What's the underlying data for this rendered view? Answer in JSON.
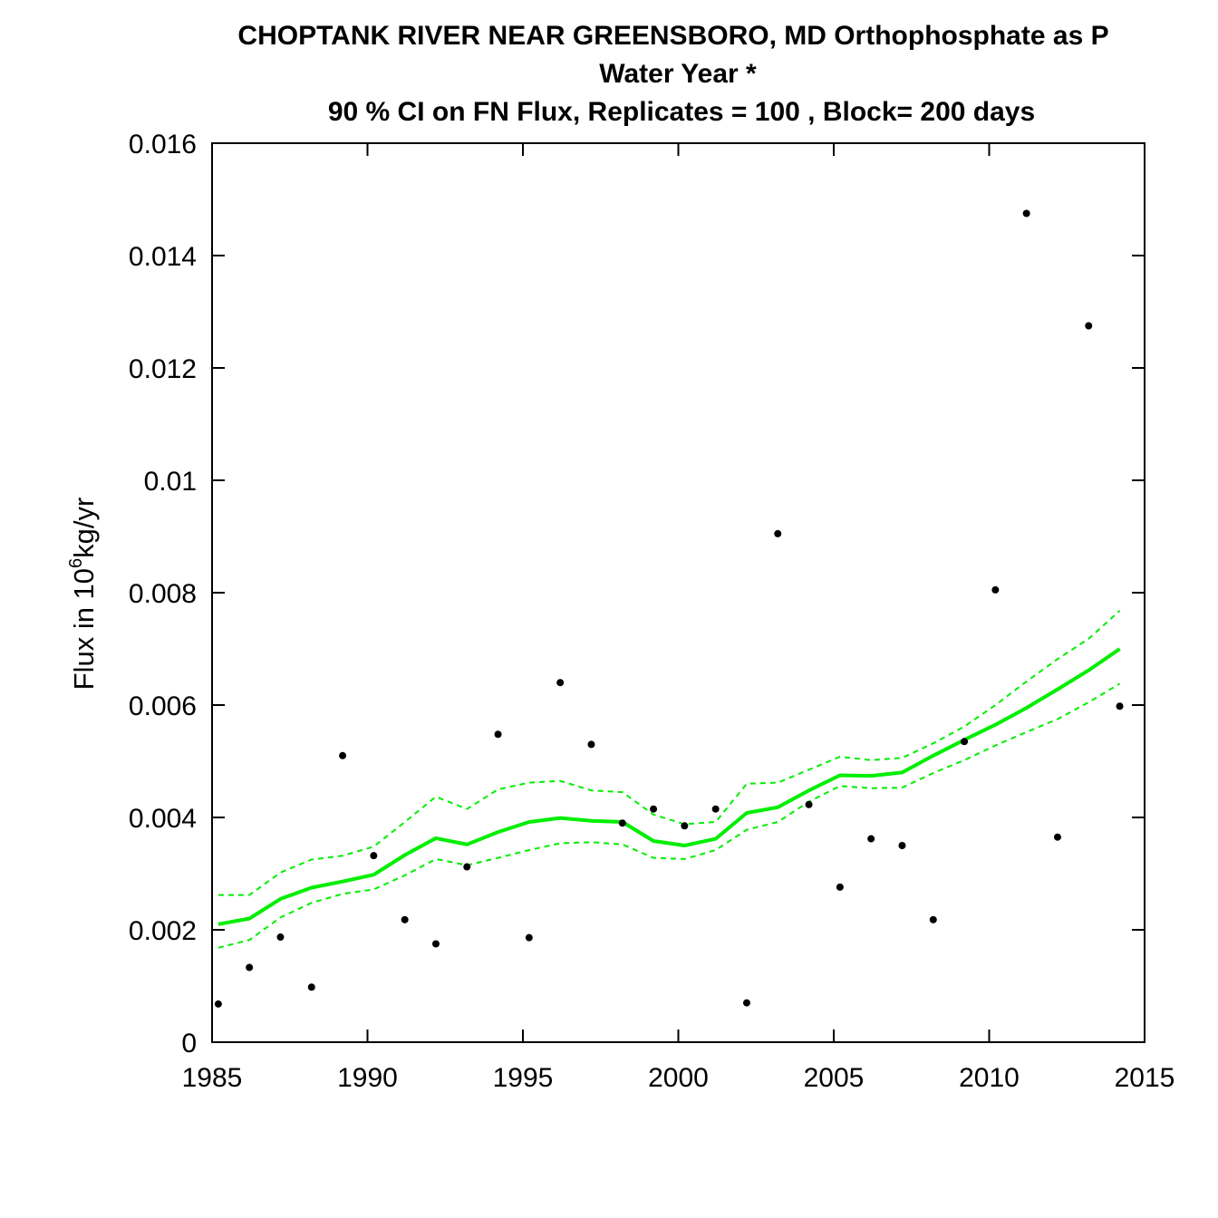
{
  "chart_data": {
    "type": "line",
    "title_lines": [
      "CHOPTANK RIVER NEAR GREENSBORO, MD   Orthophosphate as P",
      "Water Year *",
      "90 % CI on FN Flux, Replicates = 100 , Block= 200 days"
    ],
    "ylabel": {
      "prefix": "Flux in 10",
      "superscript": "6",
      "suffix": "kg/yr"
    },
    "xlabel": "",
    "xlim": [
      1985,
      2015
    ],
    "ylim": [
      0,
      0.016
    ],
    "x_ticks": [
      1985,
      1990,
      1995,
      2000,
      2005,
      2010,
      2015
    ],
    "y_ticks": [
      0,
      0.002,
      0.004,
      0.006,
      0.008,
      0.01,
      0.012,
      0.014,
      0.016
    ],
    "y_tick_labels": [
      "0",
      "0.002",
      "0.004",
      "0.006",
      "0.008",
      "0.01",
      "0.012",
      "0.014",
      "0.016"
    ],
    "x_tick_labels": [
      "1985",
      "1990",
      "1995",
      "2000",
      "2005",
      "2010",
      "2015"
    ],
    "points": {
      "x": [
        1985.2,
        1986.2,
        1987.2,
        1988.2,
        1989.2,
        1990.2,
        1991.2,
        1992.2,
        1993.2,
        1994.2,
        1995.2,
        1996.2,
        1997.2,
        1998.2,
        1999.2,
        2000.2,
        2001.2,
        2002.2,
        2003.2,
        2004.2,
        2005.2,
        2006.2,
        2007.2,
        2008.2,
        2009.2,
        2010.2,
        2011.2,
        2012.2,
        2013.2,
        2014.2
      ],
      "y": [
        0.00068,
        0.00133,
        0.00187,
        0.00098,
        0.0051,
        0.00332,
        0.00218,
        0.00175,
        0.00312,
        0.00548,
        0.00186,
        0.0064,
        0.0053,
        0.0039,
        0.00415,
        0.00385,
        0.00415,
        0.0007,
        0.00905,
        0.00423,
        0.00276,
        0.00362,
        0.0035,
        0.00218,
        0.00535,
        0.00805,
        0.01475,
        0.00365,
        0.01275,
        0.00598
      ],
      "color": "#000000"
    },
    "series": [
      {
        "role": "estimate",
        "style": "solid",
        "color": "#00ee00",
        "x": [
          1985.2,
          1986.2,
          1987.2,
          1988.2,
          1989.2,
          1990.2,
          1991.2,
          1992.2,
          1993.2,
          1994.2,
          1995.2,
          1996.2,
          1997.2,
          1998.2,
          1999.2,
          2000.2,
          2001.2,
          2002.2,
          2003.2,
          2004.2,
          2005.2,
          2006.2,
          2007.2,
          2008.2,
          2009.2,
          2010.2,
          2011.2,
          2012.2,
          2013.2,
          2014.2
        ],
        "y": [
          0.0021,
          0.0022,
          0.00255,
          0.00275,
          0.00286,
          0.00298,
          0.00333,
          0.00363,
          0.00352,
          0.00374,
          0.00392,
          0.00399,
          0.00394,
          0.00392,
          0.00358,
          0.0035,
          0.00362,
          0.00408,
          0.00418,
          0.00448,
          0.00475,
          0.00474,
          0.0048,
          0.0051,
          0.00538,
          0.00565,
          0.00595,
          0.00628,
          0.00662,
          0.007
        ]
      },
      {
        "role": "upper-90-ci",
        "style": "dashed",
        "color": "#00ee00",
        "x": [
          1985.2,
          1986.2,
          1987.2,
          1988.2,
          1989.2,
          1990.2,
          1991.2,
          1992.2,
          1993.2,
          1994.2,
          1995.2,
          1996.2,
          1997.2,
          1998.2,
          1999.2,
          2000.2,
          2001.2,
          2002.2,
          2003.2,
          2004.2,
          2005.2,
          2006.2,
          2007.2,
          2008.2,
          2009.2,
          2010.2,
          2011.2,
          2012.2,
          2013.2,
          2014.2
        ],
        "y": [
          0.00262,
          0.00262,
          0.00302,
          0.00325,
          0.00332,
          0.00348,
          0.00392,
          0.00437,
          0.00415,
          0.0045,
          0.00462,
          0.00465,
          0.00448,
          0.00445,
          0.00405,
          0.00388,
          0.00392,
          0.0046,
          0.00462,
          0.00485,
          0.00508,
          0.00502,
          0.00506,
          0.00532,
          0.00562,
          0.006,
          0.00642,
          0.00682,
          0.00718,
          0.00768
        ]
      },
      {
        "role": "lower-90-ci",
        "style": "dashed",
        "color": "#00ee00",
        "x": [
          1985.2,
          1986.2,
          1987.2,
          1988.2,
          1989.2,
          1990.2,
          1991.2,
          1992.2,
          1993.2,
          1994.2,
          1995.2,
          1996.2,
          1997.2,
          1998.2,
          1999.2,
          2000.2,
          2001.2,
          2002.2,
          2003.2,
          2004.2,
          2005.2,
          2006.2,
          2007.2,
          2008.2,
          2009.2,
          2010.2,
          2011.2,
          2012.2,
          2013.2,
          2014.2
        ],
        "y": [
          0.00168,
          0.00182,
          0.00222,
          0.00248,
          0.00264,
          0.00272,
          0.00297,
          0.00326,
          0.00315,
          0.00328,
          0.00342,
          0.00354,
          0.00356,
          0.00352,
          0.00328,
          0.00326,
          0.00342,
          0.00378,
          0.00392,
          0.00428,
          0.00456,
          0.00452,
          0.00453,
          0.00479,
          0.00502,
          0.00528,
          0.00552,
          0.00575,
          0.00605,
          0.00638
        ]
      }
    ],
    "grid": false,
    "legend": "none"
  }
}
